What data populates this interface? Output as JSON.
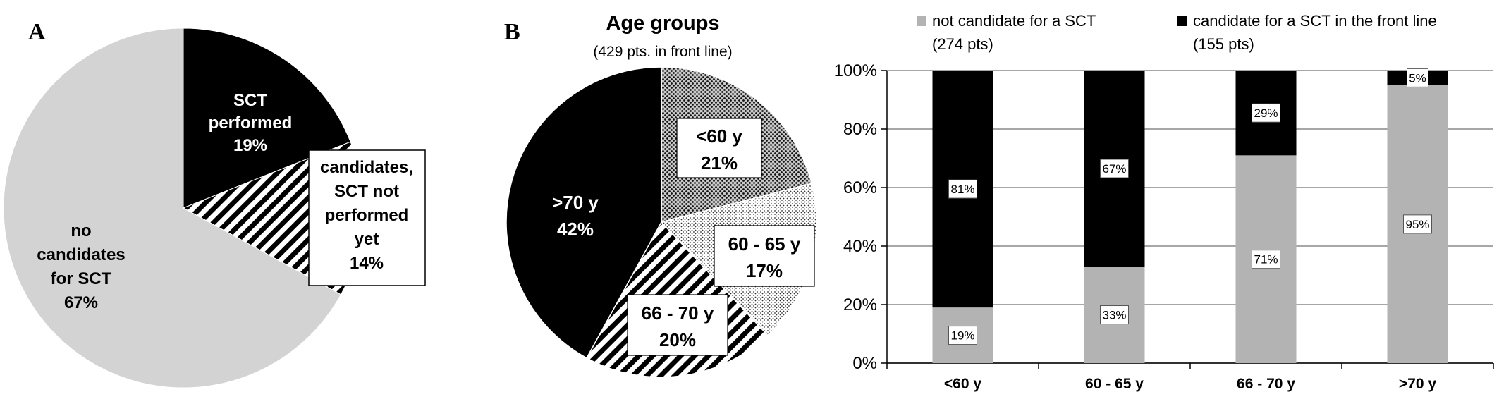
{
  "panel_a": {
    "letter": "A",
    "slices": [
      {
        "pct": 19,
        "lines": [
          "SCT",
          "performed",
          "19%"
        ],
        "color": "#000000",
        "pattern": "solid"
      },
      {
        "pct": 14,
        "lines": [
          "candidates,",
          "SCT not",
          "performed",
          "yet",
          "14%"
        ],
        "color": "#000000",
        "pattern": "diagonal-stripes"
      },
      {
        "pct": 67,
        "lines": [
          "no",
          "candidates",
          "for SCT",
          "67%"
        ],
        "color": "#d3d3d3",
        "pattern": "solid"
      }
    ]
  },
  "panel_b": {
    "letter": "B",
    "title": "Age groups",
    "subtitle": "(429 pts. in  front line)",
    "slices": [
      {
        "pct": 21,
        "lines": [
          "<60 y",
          "21%"
        ],
        "pattern": "dense-dots"
      },
      {
        "pct": 17,
        "lines": [
          "60 - 65 y",
          "17%"
        ],
        "pattern": "light-dots"
      },
      {
        "pct": 20,
        "lines": [
          "66 - 70 y",
          "20%"
        ],
        "pattern": "diagonal-stripes"
      },
      {
        "pct": 42,
        "lines": [
          ">70 y",
          "42%"
        ],
        "pattern": "solid-black"
      }
    ]
  },
  "chart_data": {
    "type": "bar",
    "stacked": true,
    "categories": [
      "<60 y",
      "60 - 65 y",
      "66 - 70 y",
      ">70 y"
    ],
    "series": [
      {
        "legend_lines": [
          "not candidate for a SCT",
          "(274 pts)"
        ],
        "values": [
          19,
          33,
          71,
          95
        ],
        "labels": [
          "19%",
          "33%",
          "71%",
          "95%"
        ],
        "color": "#b3b3b3"
      },
      {
        "legend_lines": [
          "candidate for a SCT in the front line",
          "(155 pts)"
        ],
        "values": [
          81,
          67,
          29,
          5
        ],
        "labels": [
          "81%",
          "67%",
          "29%",
          "5%"
        ],
        "color": "#000000"
      }
    ],
    "yticks": [
      "0%",
      "20%",
      "40%",
      "60%",
      "80%",
      "100%"
    ],
    "ylim": [
      0,
      100
    ],
    "grid": true,
    "legend_position": "top"
  }
}
